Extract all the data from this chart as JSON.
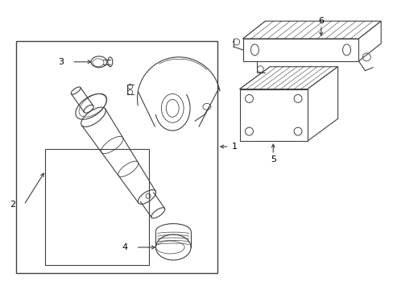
{
  "background_color": "#ffffff",
  "line_color": "#404040",
  "fig_width": 4.89,
  "fig_height": 3.6,
  "dpi": 100
}
